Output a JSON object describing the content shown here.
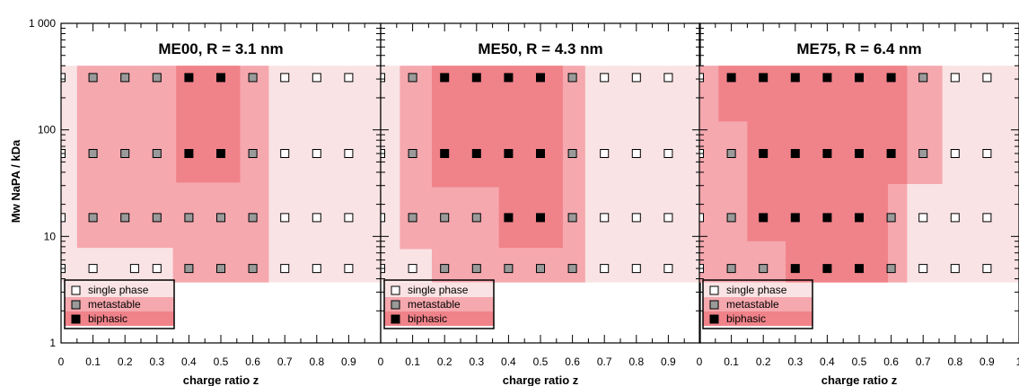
{
  "colors": {
    "single_phase_region": "#f9e3e4",
    "metastable_region": "#f5a8ae",
    "biphasic_region": "#f08289",
    "metastable_marker": "#9a9a9a",
    "biphasic_marker": "#000000",
    "axis": "#000000"
  },
  "chart_data": [
    {
      "type": "scatter",
      "title": "ME00, R = 3.1 nm",
      "xlabel": "charge ratio z",
      "ylabel": "Mw NaPA / kDa",
      "x_scale": "linear",
      "y_scale": "log",
      "xlim": [
        0,
        1
      ],
      "ylim": [
        1,
        1000
      ],
      "x_ticks": [
        "0",
        "0.1",
        "0.2",
        "0.3",
        "0.4",
        "0.5",
        "0.6",
        "0.7",
        "0.8",
        "0.9"
      ],
      "y_ticks": [
        "1",
        "10",
        "100",
        "1 000"
      ],
      "legend": {
        "position": "bottom-left",
        "entries": [
          {
            "label": "single phase",
            "marker": "open-square"
          },
          {
            "label": "metastable",
            "marker": "gray-square"
          },
          {
            "label": "biphasic",
            "marker": "black-square"
          }
        ]
      },
      "series": [
        {
          "name": "single phase",
          "points": [
            [
              0,
              310
            ],
            [
              0.7,
              310
            ],
            [
              0.8,
              310
            ],
            [
              0.9,
              310
            ],
            [
              0,
              60
            ],
            [
              0.7,
              60
            ],
            [
              0.8,
              60
            ],
            [
              0.9,
              60
            ],
            [
              0,
              15
            ],
            [
              0.7,
              15
            ],
            [
              0.8,
              15
            ],
            [
              0.9,
              15
            ],
            [
              0,
              5
            ],
            [
              0.1,
              5
            ],
            [
              0.23,
              5
            ],
            [
              0.3,
              5
            ],
            [
              0.7,
              5
            ],
            [
              0.8,
              5
            ],
            [
              0.9,
              5
            ]
          ]
        },
        {
          "name": "metastable",
          "points": [
            [
              0.1,
              310
            ],
            [
              0.2,
              310
            ],
            [
              0.3,
              310
            ],
            [
              0.6,
              310
            ],
            [
              0.1,
              60
            ],
            [
              0.2,
              60
            ],
            [
              0.3,
              60
            ],
            [
              0.6,
              60
            ],
            [
              0.1,
              15
            ],
            [
              0.2,
              15
            ],
            [
              0.3,
              15
            ],
            [
              0.4,
              15
            ],
            [
              0.5,
              15
            ],
            [
              0.6,
              15
            ],
            [
              0.4,
              5
            ],
            [
              0.5,
              5
            ],
            [
              0.6,
              5
            ]
          ]
        },
        {
          "name": "biphasic",
          "points": [
            [
              0.4,
              310
            ],
            [
              0.5,
              310
            ],
            [
              0.4,
              60
            ],
            [
              0.5,
              60
            ]
          ]
        }
      ],
      "regions": {
        "single_phase": [
          [
            0,
            3.7
          ],
          [
            1,
            3.7
          ],
          [
            1,
            400
          ],
          [
            0,
            400
          ]
        ],
        "metastable": [
          [
            0.05,
            7.8
          ],
          [
            0.05,
            400
          ],
          [
            0.65,
            400
          ],
          [
            0.65,
            3.7
          ],
          [
            0.35,
            3.7
          ],
          [
            0.35,
            7.8
          ]
        ],
        "biphasic": [
          [
            0.36,
            32
          ],
          [
            0.36,
            400
          ],
          [
            0.56,
            400
          ],
          [
            0.56,
            32
          ]
        ]
      }
    },
    {
      "type": "scatter",
      "title": "ME50, R = 4.3 nm",
      "xlabel": "charge ratio z",
      "ylabel": "",
      "x_scale": "linear",
      "y_scale": "log",
      "xlim": [
        0,
        1
      ],
      "ylim": [
        1,
        1000
      ],
      "x_ticks": [
        "0",
        "0.1",
        "0.2",
        "0.3",
        "0.4",
        "0.5",
        "0.6",
        "0.7",
        "0.8",
        "0.9"
      ],
      "legend": {
        "position": "bottom-left",
        "entries": [
          {
            "label": "single phase",
            "marker": "open-square"
          },
          {
            "label": "metastable",
            "marker": "gray-square"
          },
          {
            "label": "biphasic",
            "marker": "black-square"
          }
        ]
      },
      "series": [
        {
          "name": "single phase",
          "points": [
            [
              0,
              310
            ],
            [
              0.7,
              310
            ],
            [
              0.8,
              310
            ],
            [
              0.9,
              310
            ],
            [
              0,
              60
            ],
            [
              0.7,
              60
            ],
            [
              0.8,
              60
            ],
            [
              0.9,
              60
            ],
            [
              0,
              15
            ],
            [
              0.7,
              15
            ],
            [
              0.8,
              15
            ],
            [
              0.9,
              15
            ],
            [
              0,
              5
            ],
            [
              0.1,
              5
            ],
            [
              0.7,
              5
            ],
            [
              0.8,
              5
            ],
            [
              0.9,
              5
            ]
          ]
        },
        {
          "name": "metastable",
          "points": [
            [
              0.1,
              310
            ],
            [
              0.6,
              310
            ],
            [
              0.1,
              60
            ],
            [
              0.6,
              60
            ],
            [
              0.1,
              15
            ],
            [
              0.2,
              15
            ],
            [
              0.3,
              15
            ],
            [
              0.6,
              15
            ],
            [
              0.2,
              5
            ],
            [
              0.3,
              5
            ],
            [
              0.4,
              5
            ],
            [
              0.5,
              5
            ],
            [
              0.6,
              5
            ]
          ]
        },
        {
          "name": "biphasic",
          "points": [
            [
              0.2,
              310
            ],
            [
              0.3,
              310
            ],
            [
              0.4,
              310
            ],
            [
              0.5,
              310
            ],
            [
              0.2,
              60
            ],
            [
              0.3,
              60
            ],
            [
              0.4,
              60
            ],
            [
              0.5,
              60
            ],
            [
              0.4,
              15
            ],
            [
              0.5,
              15
            ]
          ]
        }
      ],
      "regions": {
        "single_phase": [
          [
            0,
            3.7
          ],
          [
            1,
            3.7
          ],
          [
            1,
            400
          ],
          [
            0,
            400
          ]
        ],
        "metastable": [
          [
            0.06,
            7.6
          ],
          [
            0.06,
            400
          ],
          [
            0.64,
            400
          ],
          [
            0.64,
            3.7
          ],
          [
            0.16,
            3.7
          ],
          [
            0.16,
            7.6
          ]
        ],
        "biphasic": [
          [
            0.16,
            29
          ],
          [
            0.16,
            400
          ],
          [
            0.57,
            400
          ],
          [
            0.57,
            7.8
          ],
          [
            0.37,
            7.8
          ],
          [
            0.37,
            29
          ]
        ]
      }
    },
    {
      "type": "scatter",
      "title": "ME75, R = 6.4 nm",
      "xlabel": "charge ratio z",
      "ylabel": "",
      "x_scale": "linear",
      "y_scale": "log",
      "xlim": [
        0,
        1
      ],
      "ylim": [
        1,
        1000
      ],
      "x_ticks": [
        "0",
        "0.1",
        "0.2",
        "0.3",
        "0.4",
        "0.5",
        "0.6",
        "0.7",
        "0.8",
        "0.9",
        "1"
      ],
      "legend": {
        "position": "bottom-left",
        "entries": [
          {
            "label": "single phase",
            "marker": "open-square"
          },
          {
            "label": "metastable",
            "marker": "gray-square"
          },
          {
            "label": "biphasic",
            "marker": "black-square"
          }
        ]
      },
      "series": [
        {
          "name": "single phase",
          "points": [
            [
              0,
              310
            ],
            [
              0.8,
              310
            ],
            [
              0.9,
              310
            ],
            [
              0,
              60
            ],
            [
              0.8,
              60
            ],
            [
              0.9,
              60
            ],
            [
              0,
              15
            ],
            [
              0.7,
              15
            ],
            [
              0.8,
              15
            ],
            [
              0.9,
              15
            ],
            [
              0,
              5
            ],
            [
              0.7,
              5
            ],
            [
              0.8,
              5
            ],
            [
              0.9,
              5
            ]
          ]
        },
        {
          "name": "metastable",
          "points": [
            [
              0.7,
              310
            ],
            [
              0.1,
              60
            ],
            [
              0.7,
              60
            ],
            [
              0.1,
              15
            ],
            [
              0.6,
              15
            ],
            [
              0.1,
              5
            ],
            [
              0.2,
              5
            ],
            [
              0.6,
              5
            ]
          ]
        },
        {
          "name": "biphasic",
          "points": [
            [
              0.1,
              310
            ],
            [
              0.2,
              310
            ],
            [
              0.3,
              310
            ],
            [
              0.4,
              310
            ],
            [
              0.5,
              310
            ],
            [
              0.6,
              310
            ],
            [
              0.2,
              60
            ],
            [
              0.3,
              60
            ],
            [
              0.4,
              60
            ],
            [
              0.5,
              60
            ],
            [
              0.6,
              60
            ],
            [
              0.2,
              15
            ],
            [
              0.3,
              15
            ],
            [
              0.4,
              15
            ],
            [
              0.5,
              15
            ],
            [
              0.3,
              5
            ],
            [
              0.4,
              5
            ],
            [
              0.5,
              5
            ]
          ]
        }
      ],
      "regions": {
        "single_phase": [
          [
            0,
            3.7
          ],
          [
            1,
            3.7
          ],
          [
            1,
            400
          ],
          [
            0,
            400
          ]
        ],
        "metastable": [
          [
            0,
            3.7
          ],
          [
            0,
            400
          ],
          [
            0.76,
            400
          ],
          [
            0.76,
            31
          ],
          [
            0.65,
            31
          ],
          [
            0.65,
            3.7
          ]
        ],
        "biphasic": [
          [
            0.06,
            120
          ],
          [
            0.06,
            400
          ],
          [
            0.65,
            400
          ],
          [
            0.65,
            31
          ],
          [
            0.59,
            31
          ],
          [
            0.59,
            3.7
          ],
          [
            0.27,
            3.7
          ],
          [
            0.27,
            9
          ],
          [
            0.15,
            9
          ],
          [
            0.15,
            120
          ]
        ]
      }
    }
  ]
}
